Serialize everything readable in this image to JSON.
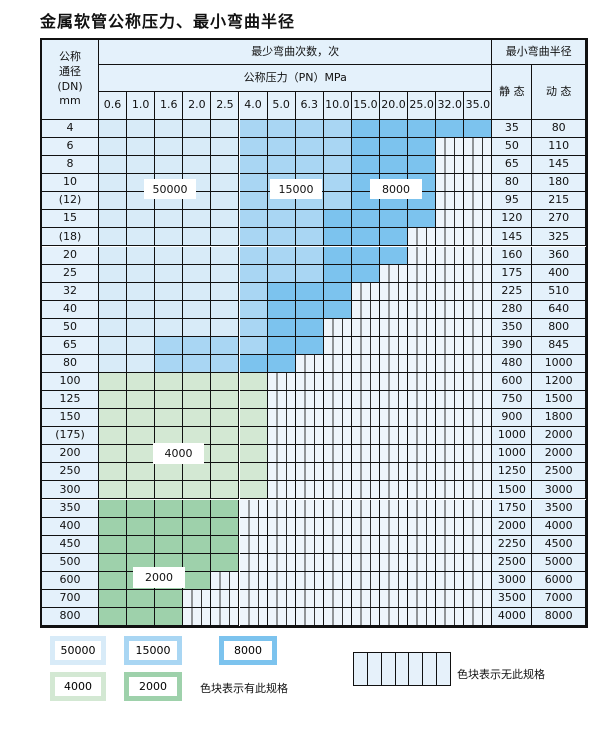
{
  "title": "金属软管公称压力、最小弯曲半径",
  "header": {
    "dn": "公称\n通径\n(DN)\nmm",
    "cycles": "最少弯曲次数，次",
    "pressure": "公称压力（PN）MPa",
    "radius": "最小弯曲半径",
    "static": "静 态",
    "dynamic": "动 态"
  },
  "pressures": [
    "0.6",
    "1.0",
    "1.6",
    "2.0",
    "2.5",
    "4.0",
    "5.0",
    "6.3",
    "10.0",
    "15.0",
    "20.0",
    "25.0",
    "32.0",
    "35.0"
  ],
  "categories": {
    "A": {
      "value": "50000",
      "color": "#d8ebf8"
    },
    "B": {
      "value": "15000",
      "color": "#a9d6f3"
    },
    "C": {
      "value": "8000",
      "color": "#7cc3ee"
    },
    "D": {
      "value": "4000",
      "color": "#d3e8d3"
    },
    "E": {
      "value": "2000",
      "color": "#9ed1ab"
    },
    "X": {
      "value": "",
      "color": "#eef5fb"
    }
  },
  "rows": [
    {
      "dn": "4",
      "static": "35",
      "dynamic": "80",
      "cells": "AAAAABBBBCCCCC"
    },
    {
      "dn": "6",
      "static": "50",
      "dynamic": "110",
      "cells": "AAAAABBBBCCCXX"
    },
    {
      "dn": "8",
      "static": "65",
      "dynamic": "145",
      "cells": "AAAAABBBBCCCXX"
    },
    {
      "dn": "10",
      "static": "80",
      "dynamic": "180",
      "cells": "AAAAABBBBCCCXX"
    },
    {
      "dn": "(12)",
      "static": "95",
      "dynamic": "215",
      "cells": "AAAAABBBBCCCXX"
    },
    {
      "dn": "15",
      "static": "120",
      "dynamic": "270",
      "cells": "AAAAABBBCCCCXX"
    },
    {
      "dn": "(18)",
      "static": "145",
      "dynamic": "325",
      "cells": "AAAAABBBCCCXXX"
    },
    {
      "dn": "20",
      "static": "160",
      "dynamic": "360",
      "cells": "AAAAABBBCCCXXX"
    },
    {
      "dn": "25",
      "static": "175",
      "dynamic": "400",
      "cells": "AAAAABBBCCXXXX"
    },
    {
      "dn": "32",
      "static": "225",
      "dynamic": "510",
      "cells": "AAAAABCCCXXXXX"
    },
    {
      "dn": "40",
      "static": "280",
      "dynamic": "640",
      "cells": "AAAAABCCCXXXXX"
    },
    {
      "dn": "50",
      "static": "350",
      "dynamic": "800",
      "cells": "AAAAABCCXXXXXX"
    },
    {
      "dn": "65",
      "static": "390",
      "dynamic": "845",
      "cells": "AABBBBCCXXXXXX"
    },
    {
      "dn": "80",
      "static": "480",
      "dynamic": "1000",
      "cells": "AABBBCCXXXXXXX"
    },
    {
      "dn": "100",
      "static": "600",
      "dynamic": "1200",
      "cells": "DDDDDDXXXXXXXX"
    },
    {
      "dn": "125",
      "static": "750",
      "dynamic": "1500",
      "cells": "DDDDDDXXXXXXXX"
    },
    {
      "dn": "150",
      "static": "900",
      "dynamic": "1800",
      "cells": "DDDDDDXXXXXXXX"
    },
    {
      "dn": "(175)",
      "static": "1000",
      "dynamic": "2000",
      "cells": "DDDDDDXXXXXXXX"
    },
    {
      "dn": "200",
      "static": "1000",
      "dynamic": "2000",
      "cells": "DDDDDDXXXXXXXX"
    },
    {
      "dn": "250",
      "static": "1250",
      "dynamic": "2500",
      "cells": "DDDDDDXXXXXXXX"
    },
    {
      "dn": "300",
      "static": "1500",
      "dynamic": "3000",
      "cells": "DDDDDDXXXXXXXX"
    },
    {
      "dn": "350",
      "static": "1750",
      "dynamic": "3500",
      "cells": "EEEEEXXXXXXXXX"
    },
    {
      "dn": "400",
      "static": "2000",
      "dynamic": "4000",
      "cells": "EEEEEXXXXXXXXX"
    },
    {
      "dn": "450",
      "static": "2250",
      "dynamic": "4500",
      "cells": "EEEEEXXXXXXXXX"
    },
    {
      "dn": "500",
      "static": "2500",
      "dynamic": "5000",
      "cells": "EEEEEXXXXXXXXX"
    },
    {
      "dn": "600",
      "static": "3000",
      "dynamic": "6000",
      "cells": "EEEEXXXXXXXXXX"
    },
    {
      "dn": "700",
      "static": "3500",
      "dynamic": "7000",
      "cells": "EEEXXXXXXXXXXX"
    },
    {
      "dn": "800",
      "static": "4000",
      "dynamic": "8000",
      "cells": "EEEXXXXXXXXXXX"
    }
  ],
  "region_labels": {
    "a": "50000",
    "b": "15000",
    "c": "8000",
    "d": "4000",
    "e": "2000"
  },
  "legend": {
    "l50000": "50000",
    "l15000": "15000",
    "l8000": "8000",
    "l4000": "4000",
    "l2000": "2000",
    "has_spec": "色块表示有此规格",
    "no_spec": "色块表示无此规格"
  }
}
